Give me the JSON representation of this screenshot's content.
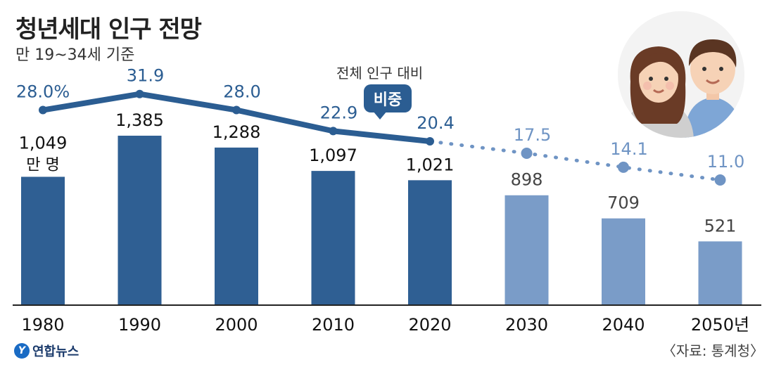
{
  "header": {
    "title": "청년세대 인구 전망",
    "subtitle": "만 19~34세 기준"
  },
  "callout": {
    "note": "전체 인구 대비",
    "label": "비중"
  },
  "source": "〈자료: 통계청〉",
  "logo": {
    "mark": "Y",
    "name": "연합뉴스"
  },
  "colors": {
    "actual_bar": "#2f5f93",
    "projected_bar": "#7a9cc8",
    "actual_line": "#2b5d92",
    "projected_line": "#6f94c4",
    "axis": "#222222"
  },
  "chart_data": {
    "type": "bar",
    "categories": [
      "1980",
      "1990",
      "2000",
      "2010",
      "2020",
      "2030",
      "2040",
      "2050년"
    ],
    "series": [
      {
        "values": [
          1049,
          1385,
          1288,
          1097,
          1021,
          898,
          709,
          521
        ]
      },
      {
        "values": [
          28.0,
          31.9,
          28.0,
          22.9,
          20.4,
          17.5,
          14.1,
          11.0
        ]
      }
    ],
    "bar_labels": [
      "1,049",
      "1,385",
      "1,288",
      "1,097",
      "1,021",
      "898",
      "709",
      "521"
    ],
    "first_bar_unit": "만 명",
    "line_labels": [
      "28.0%",
      "31.9",
      "28.0",
      "22.9",
      "20.4",
      "17.5",
      "14.1",
      "11.0"
    ],
    "projected_from_index": 5,
    "ylim": [
      0,
      1500
    ],
    "ratio_ylim": [
      0,
      40
    ],
    "grid": false,
    "legend": "none"
  }
}
